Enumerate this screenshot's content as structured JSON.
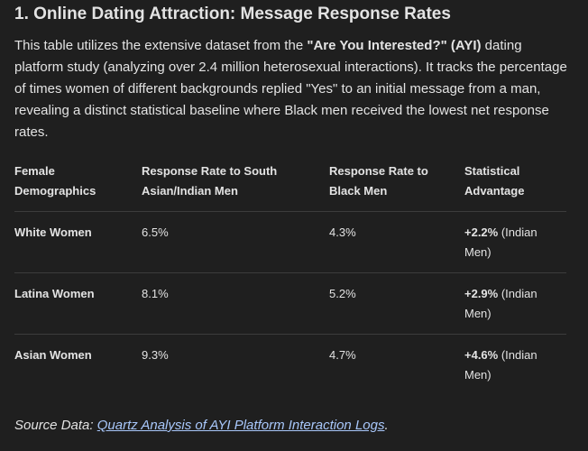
{
  "heading": "1. Online Dating Attraction: Message Response Rates",
  "intro": {
    "before": "This table utilizes the extensive dataset from the ",
    "bold": "\"Are You Interested?\" (AYI)",
    "after": " dating platform study (analyzing over 2.4 million heterosexual interactions). It tracks the percentage of times women of different backgrounds replied \"Yes\" to an initial message from a man, revealing a distinct statistical baseline where Black men received the lowest net response rates."
  },
  "table": {
    "headers": [
      "Female Demographics",
      "Response Rate to South Asian/Indian Men",
      "Response Rate to Black Men",
      "Statistical Advantage"
    ],
    "rows": [
      [
        "White Women",
        "6.5%",
        "4.3%",
        {
          "bold": "+2.2%",
          "rest": " (Indian Men)"
        }
      ],
      [
        "Latina Women",
        "8.1%",
        "5.2%",
        {
          "bold": "+2.9%",
          "rest": " (Indian Men)"
        }
      ],
      [
        "Asian Women",
        "9.3%",
        "4.7%",
        {
          "bold": "+4.6%",
          "rest": " (Indian Men)"
        }
      ]
    ]
  },
  "source": {
    "label": "Source Data: ",
    "link": "Quartz Analysis of AYI Platform Interaction Logs",
    "end": "."
  }
}
